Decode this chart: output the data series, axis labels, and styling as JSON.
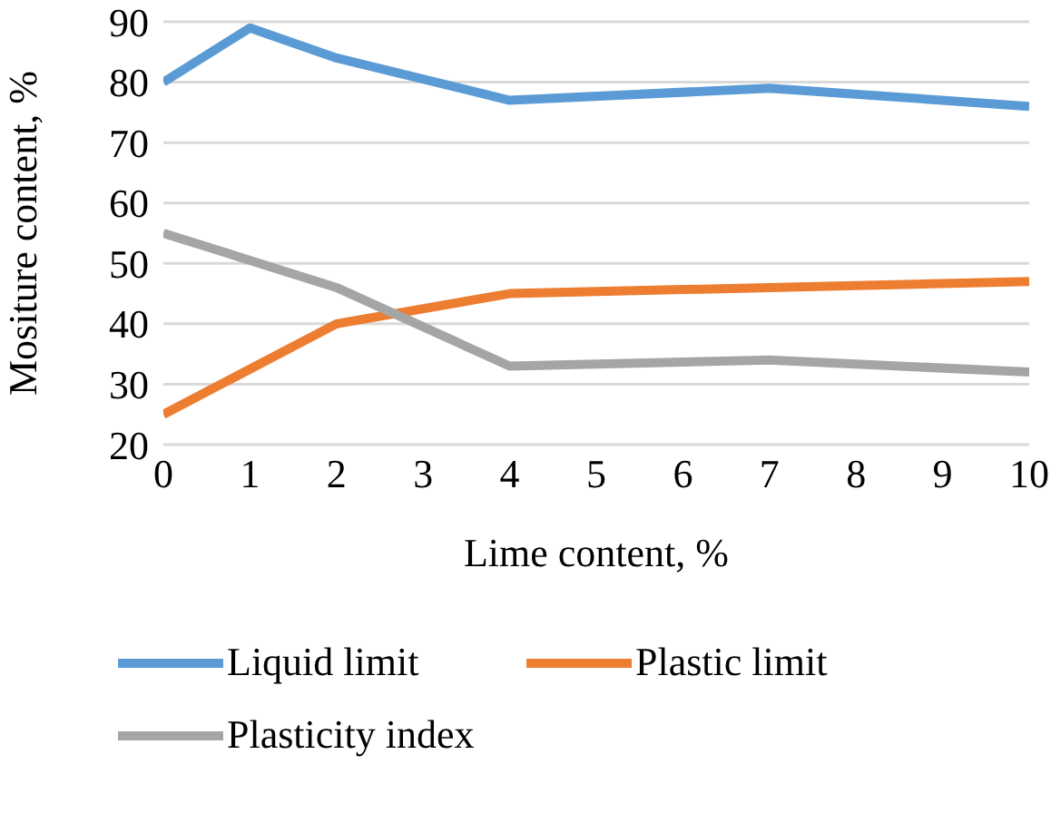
{
  "chart_data": {
    "type": "line",
    "xlabel": "Lime content, %",
    "ylabel": "Mositure content, %",
    "xlim": [
      0,
      10
    ],
    "xticks": [
      0,
      1,
      2,
      3,
      4,
      5,
      6,
      7,
      8,
      9,
      10
    ],
    "ylim": [
      20,
      90
    ],
    "yticks": [
      20,
      30,
      40,
      50,
      60,
      70,
      80,
      90
    ],
    "grid": "y",
    "legend": "bottom",
    "marker": "none",
    "line_style": "solid",
    "series": [
      {
        "name": "Liquid limit",
        "color": "#5b9bd5",
        "x": [
          0,
          1,
          2,
          4,
          7,
          10
        ],
        "values": [
          80,
          89,
          84,
          77,
          79,
          76
        ]
      },
      {
        "name": "Plastic limit",
        "color": "#ed7d31",
        "x": [
          0,
          2,
          4,
          7,
          10
        ],
        "values": [
          25,
          40,
          45,
          46,
          47
        ]
      },
      {
        "name": "Plasticity index",
        "color": "#a5a5a5",
        "x": [
          0,
          2,
          4,
          7,
          10
        ],
        "values": [
          55,
          46,
          33,
          34,
          32
        ]
      }
    ]
  }
}
